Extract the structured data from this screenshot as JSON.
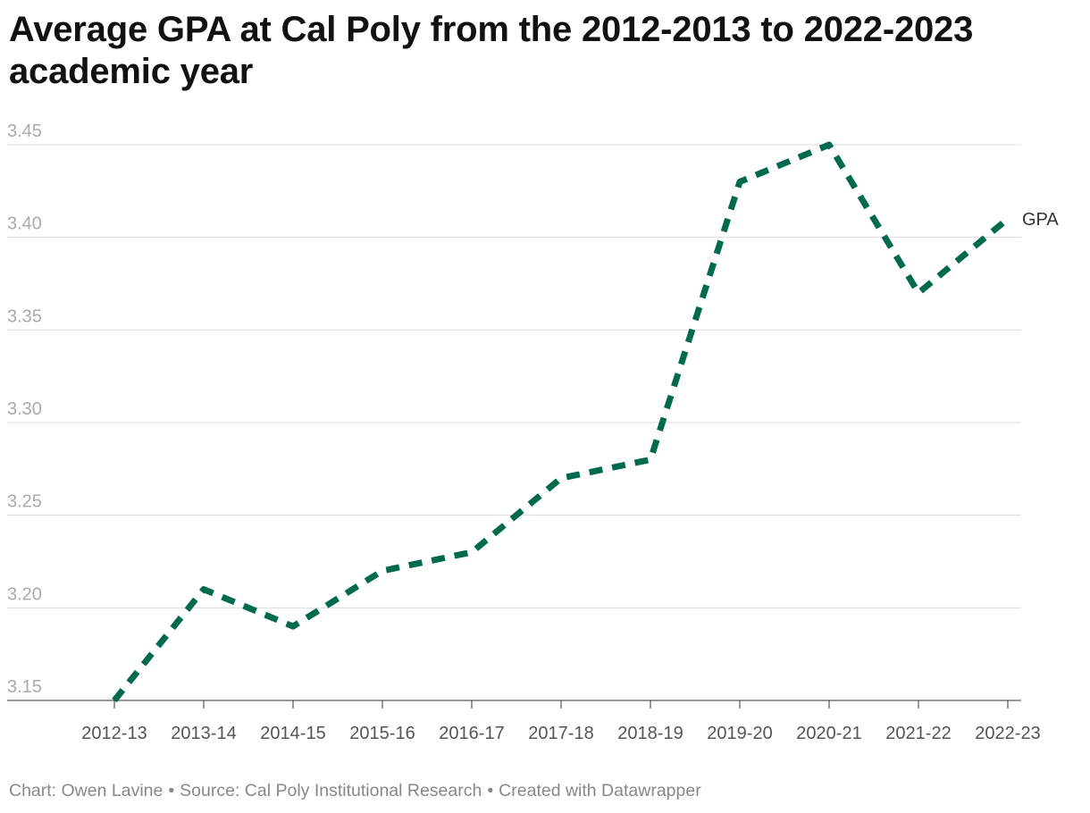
{
  "chart_data": {
    "type": "line",
    "title": "Average GPA at Cal Poly from the 2012-2013 to 2022-2023 academic year",
    "categories": [
      "2012-13",
      "2013-14",
      "2014-15",
      "2015-16",
      "2016-17",
      "2017-18",
      "2018-19",
      "2019-20",
      "2020-21",
      "2021-22",
      "2022-23"
    ],
    "series": [
      {
        "name": "GPA",
        "values": [
          3.15,
          3.21,
          3.19,
          3.22,
          3.23,
          3.27,
          3.28,
          3.43,
          3.45,
          3.37,
          3.41
        ]
      }
    ],
    "yticks": [
      3.15,
      3.2,
      3.25,
      3.3,
      3.35,
      3.4,
      3.45
    ],
    "ytick_labels": [
      "3.15",
      "3.20",
      "3.25",
      "3.30",
      "3.35",
      "3.40",
      "3.45"
    ],
    "ylim": [
      3.15,
      3.45
    ],
    "line_style": "dashed",
    "line_color": "#006a4e",
    "grid": true,
    "legend": "direct label at line end"
  },
  "footer": {
    "chart_credit": "Chart: Owen Lavine",
    "source": "Source: Cal Poly Institutional Research",
    "created_with": "Created with Datawrapper",
    "separator": "•"
  }
}
